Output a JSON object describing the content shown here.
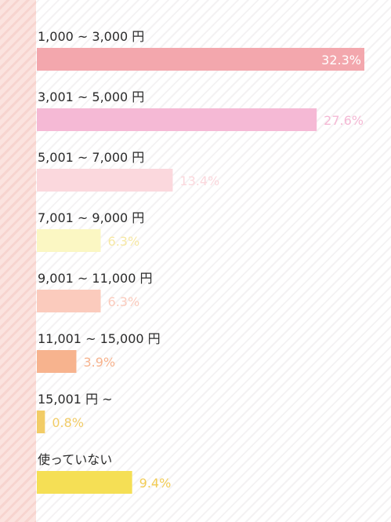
{
  "chart_data": {
    "type": "bar",
    "orientation": "horizontal",
    "categories": [
      "1,000 ~ 3,000 円",
      "3,001 ~ 5,000 円",
      "5,001 ~ 7,000 円",
      "7,001 ~ 9,000 円",
      "9,001 ~ 11,000 円",
      "11,001 ~ 15,000 円",
      "15,001 円 ~",
      "使っていない"
    ],
    "values": [
      32.3,
      27.6,
      13.4,
      6.3,
      6.3,
      3.9,
      0.8,
      9.4
    ],
    "value_labels": [
      "32.3%",
      "27.6%",
      "13.4%",
      "6.3%",
      "6.3%",
      "3.9%",
      "0.8%",
      "9.4%"
    ],
    "unit": "%",
    "colors": [
      "#f3a7ad",
      "#f5b9d5",
      "#fbd8dd",
      "#fbf7c3",
      "#fbcbbd",
      "#f7b38e",
      "#f2cc66",
      "#f5df55"
    ],
    "label_colors": [
      "#ffffff",
      "#f5b9d5",
      "#fbd8dd",
      "#f7e9a5",
      "#fbcbbd",
      "#f7b38e",
      "#f2cc66",
      "#f2cc55"
    ],
    "title": "",
    "xlabel": "",
    "ylabel": "",
    "xlim": [
      0,
      32.3
    ],
    "grid": false,
    "legend": "none"
  }
}
